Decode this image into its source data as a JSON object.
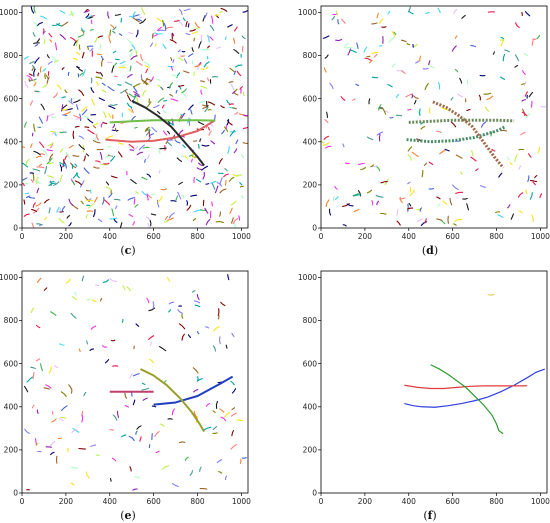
{
  "chart_data": [
    {
      "type": "scatter",
      "panel_label": "(c)",
      "xlim": [
        0,
        1030
      ],
      "ylim": [
        0,
        1030
      ],
      "xticks": [
        0,
        200,
        400,
        600,
        800,
        1000
      ],
      "yticks": [
        0,
        200,
        400,
        600,
        800,
        1000
      ],
      "clutter": {
        "count": 620,
        "description_colors": "multicolor",
        "seed": 11
      },
      "tracks": [
        {
          "color": "#e06060",
          "points": [
            [
              380,
              410
            ],
            [
              500,
              400
            ],
            [
              600,
              405
            ],
            [
              700,
              420
            ],
            [
              800,
              450
            ],
            [
              880,
              500
            ]
          ]
        },
        {
          "color": "#6fbf4a",
          "points": [
            [
              400,
              490
            ],
            [
              500,
              495
            ],
            [
              600,
              500
            ],
            [
              700,
              500
            ],
            [
              800,
              500
            ],
            [
              880,
              498
            ]
          ]
        },
        {
          "color": "#2c2c2c",
          "points": [
            [
              500,
              590
            ],
            [
              560,
              560
            ],
            [
              620,
              520
            ],
            [
              680,
              470
            ],
            [
              740,
              400
            ],
            [
              800,
              330
            ],
            [
              830,
              290
            ]
          ]
        }
      ]
    },
    {
      "type": "scatter",
      "panel_label": "(d)",
      "xlim": [
        0,
        1030
      ],
      "ylim": [
        0,
        1030
      ],
      "xticks": [
        0,
        200,
        400,
        600,
        800,
        1000
      ],
      "yticks": [
        0,
        200,
        400,
        600,
        800,
        1000
      ],
      "clutter": {
        "count": 230,
        "description_colors": "multicolor",
        "seed": 22
      },
      "tracks": [
        {
          "color": "#4a8f6a",
          "points": [
            [
              390,
              410
            ],
            [
              500,
              400
            ],
            [
              600,
              405
            ],
            [
              700,
              420
            ],
            [
              800,
              450
            ],
            [
              840,
              470
            ]
          ]
        },
        {
          "color": "#6a8a5a",
          "points": [
            [
              400,
              490
            ],
            [
              500,
              495
            ],
            [
              600,
              500
            ],
            [
              700,
              500
            ],
            [
              800,
              500
            ],
            [
              880,
              497
            ]
          ]
        },
        {
          "color": "#a06a4a",
          "points": [
            [
              510,
              585
            ],
            [
              570,
              560
            ],
            [
              630,
              520
            ],
            [
              690,
              470
            ],
            [
              740,
              400
            ],
            [
              790,
              330
            ],
            [
              830,
              280
            ]
          ]
        }
      ]
    },
    {
      "type": "scatter",
      "panel_label": "(e)",
      "xlim": [
        0,
        1030
      ],
      "ylim": [
        0,
        1030
      ],
      "xticks": [
        0,
        200,
        400,
        600,
        800,
        1000
      ],
      "yticks": [
        0,
        200,
        400,
        600,
        800,
        1000
      ],
      "clutter": {
        "count": 170,
        "description_colors": "multicolor",
        "seed": 33
      },
      "tracks": [
        {
          "color": "#1f3fbf",
          "points": [
            [
              600,
              410
            ],
            [
              700,
              420
            ],
            [
              800,
              450
            ],
            [
              900,
              505
            ],
            [
              960,
              540
            ]
          ]
        },
        {
          "color": "#bf3f6f",
          "points": [
            [
              400,
              470
            ],
            [
              500,
              470
            ],
            [
              600,
              470
            ]
          ]
        },
        {
          "color": "#9aa02a",
          "points": [
            [
              540,
              575
            ],
            [
              600,
              545
            ],
            [
              660,
              500
            ],
            [
              720,
              440
            ],
            [
              770,
              380
            ],
            [
              810,
              320
            ],
            [
              830,
              285
            ]
          ]
        }
      ]
    },
    {
      "type": "line",
      "panel_label": "(f)",
      "xlim": [
        0,
        1030
      ],
      "ylim": [
        0,
        1030
      ],
      "xticks": [
        0,
        200,
        400,
        600,
        800,
        1000
      ],
      "yticks": [
        0,
        200,
        400,
        600,
        800,
        1000
      ],
      "series": [
        {
          "color": "#2f3fe0",
          "x": [
            380,
            420,
            460,
            520,
            580,
            640,
            700,
            760,
            820,
            880,
            940,
            980,
            1020
          ],
          "y": [
            415,
            405,
            400,
            398,
            405,
            415,
            428,
            445,
            470,
            500,
            535,
            560,
            575
          ]
        },
        {
          "color": "#e23a3a",
          "x": [
            380,
            440,
            500,
            560,
            620,
            680,
            740,
            800,
            860,
            920,
            940
          ],
          "y": [
            500,
            490,
            485,
            485,
            490,
            495,
            497,
            497,
            497,
            497,
            498
          ]
        },
        {
          "color": "#2f9a2f",
          "x": [
            500,
            540,
            580,
            620,
            660,
            700,
            740,
            780,
            800,
            810,
            830
          ],
          "y": [
            595,
            575,
            550,
            520,
            490,
            450,
            410,
            360,
            320,
            290,
            275
          ]
        },
        {
          "color": "#e6d26a",
          "x": [
            760,
            775,
            790
          ],
          "y": [
            920,
            918,
            921
          ]
        }
      ]
    }
  ]
}
